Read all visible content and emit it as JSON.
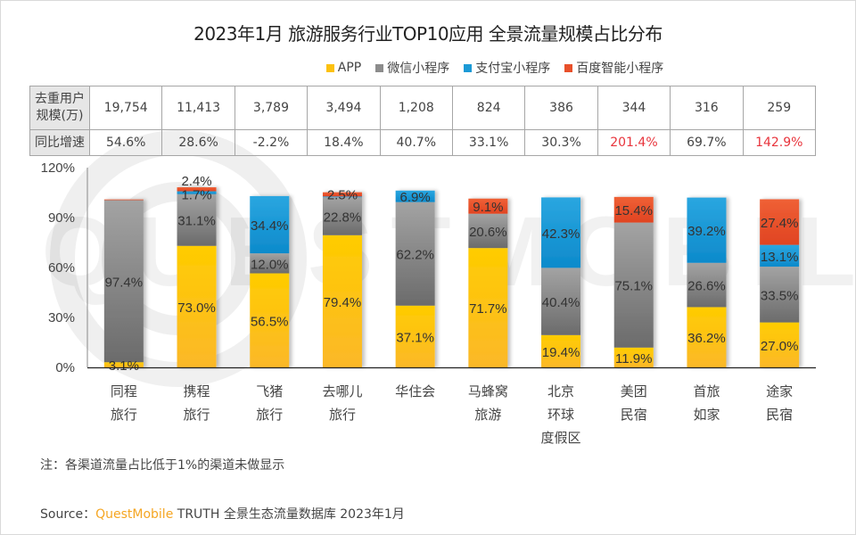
{
  "title": "2023年1月 旅游服务行业TOP10应用 全景流量规模占比分布",
  "legend": [
    {
      "label": "APP",
      "color": "#fcc10f"
    },
    {
      "label": "微信小程序",
      "color": "#8c8c8c"
    },
    {
      "label": "支付宝小程序",
      "color": "#1b9ad6"
    },
    {
      "label": "百度智能小程序",
      "color": "#e8502a"
    }
  ],
  "table": {
    "row1_header": "去重用户规模(万)",
    "row1_header_lines": [
      "去重用户",
      "规模(万)"
    ],
    "row2_header": "同比增速",
    "users": [
      "19,754",
      "11,413",
      "3,789",
      "3,494",
      "1,208",
      "824",
      "386",
      "344",
      "316",
      "259"
    ],
    "growth": [
      "54.6%",
      "28.6%",
      "-2.2%",
      "18.4%",
      "40.7%",
      "33.1%",
      "30.3%",
      "201.4%",
      "69.7%",
      "142.9%"
    ],
    "growth_highlight": [
      false,
      false,
      false,
      false,
      false,
      false,
      false,
      true,
      false,
      true
    ],
    "highlight_color": "#e8343c"
  },
  "chart_data": {
    "type": "bar",
    "stacked": true,
    "title": "2023年1月 旅游服务行业TOP10应用 全景流量规模占比分布",
    "xlabel": "",
    "ylabel": "",
    "ylim": [
      0,
      120
    ],
    "yticks": [
      "0%",
      "30%",
      "60%",
      "90%",
      "120%"
    ],
    "ytick_values": [
      0,
      30,
      60,
      90,
      120
    ],
    "grid": false,
    "legend_position": "top-center",
    "categories": [
      "同程旅行",
      "携程旅行",
      "飞猪旅行",
      "去哪儿旅行",
      "华住会",
      "马蜂窝旅游",
      "北京环球度假区",
      "美团民宿",
      "首旅如家",
      "途家民宿"
    ],
    "category_lines": [
      [
        "同程",
        "旅行"
      ],
      [
        "携程",
        "旅行"
      ],
      [
        "飞猪",
        "旅行"
      ],
      [
        "去哪儿",
        "旅行"
      ],
      [
        "华住会"
      ],
      [
        "马蜂窝",
        "旅游"
      ],
      [
        "北京",
        "环球",
        "度假区"
      ],
      [
        "美团",
        "民宿"
      ],
      [
        "首旅",
        "如家"
      ],
      [
        "途家",
        "民宿"
      ]
    ],
    "series": [
      {
        "name": "APP",
        "color": "#fcc10f",
        "values": [
          3.1,
          73.0,
          56.5,
          79.4,
          37.1,
          71.7,
          19.4,
          11.9,
          36.2,
          27.0
        ],
        "labels": [
          "3.1%",
          "73.0%",
          "56.5%",
          "79.4%",
          "37.1%",
          "71.7%",
          "19.4%",
          "11.9%",
          "36.2%",
          "27.0%"
        ]
      },
      {
        "name": "微信小程序",
        "color": "#8c8c8c",
        "values": [
          97.4,
          31.1,
          12.0,
          22.8,
          62.2,
          20.6,
          40.4,
          75.1,
          26.6,
          33.5
        ],
        "labels": [
          "97.4%",
          "31.1%",
          "12.0%",
          "22.8%",
          "62.2%",
          "20.6%",
          "40.4%",
          "75.1%",
          "26.6%",
          "33.5%"
        ]
      },
      {
        "name": "支付宝小程序",
        "color": "#1b9ad6",
        "values": [
          0,
          1.7,
          34.4,
          0.5,
          6.9,
          0,
          42.3,
          0,
          39.2,
          13.1
        ],
        "labels": [
          "",
          "1.7%",
          "34.4%",
          "",
          "6.9%",
          "",
          "42.3%",
          "",
          "39.2%",
          "13.1%"
        ]
      },
      {
        "name": "百度智能小程序",
        "color": "#e8502a",
        "values": [
          0.4,
          2.4,
          0,
          2.5,
          0,
          9.1,
          0,
          15.4,
          0,
          27.4
        ],
        "labels": [
          "",
          "2.4%",
          "",
          "2.5%",
          "",
          "9.1%",
          "",
          "15.4%",
          "",
          "27.4%"
        ]
      }
    ]
  },
  "note": "注：各渠道流量占比低于1%的渠道未做显示",
  "source": {
    "prefix": "Source：",
    "brand": "QuestMobile",
    "rest": "TRUTH 全景生态流量数据库 2023年1月"
  },
  "watermark": "QUESTMOBILE"
}
